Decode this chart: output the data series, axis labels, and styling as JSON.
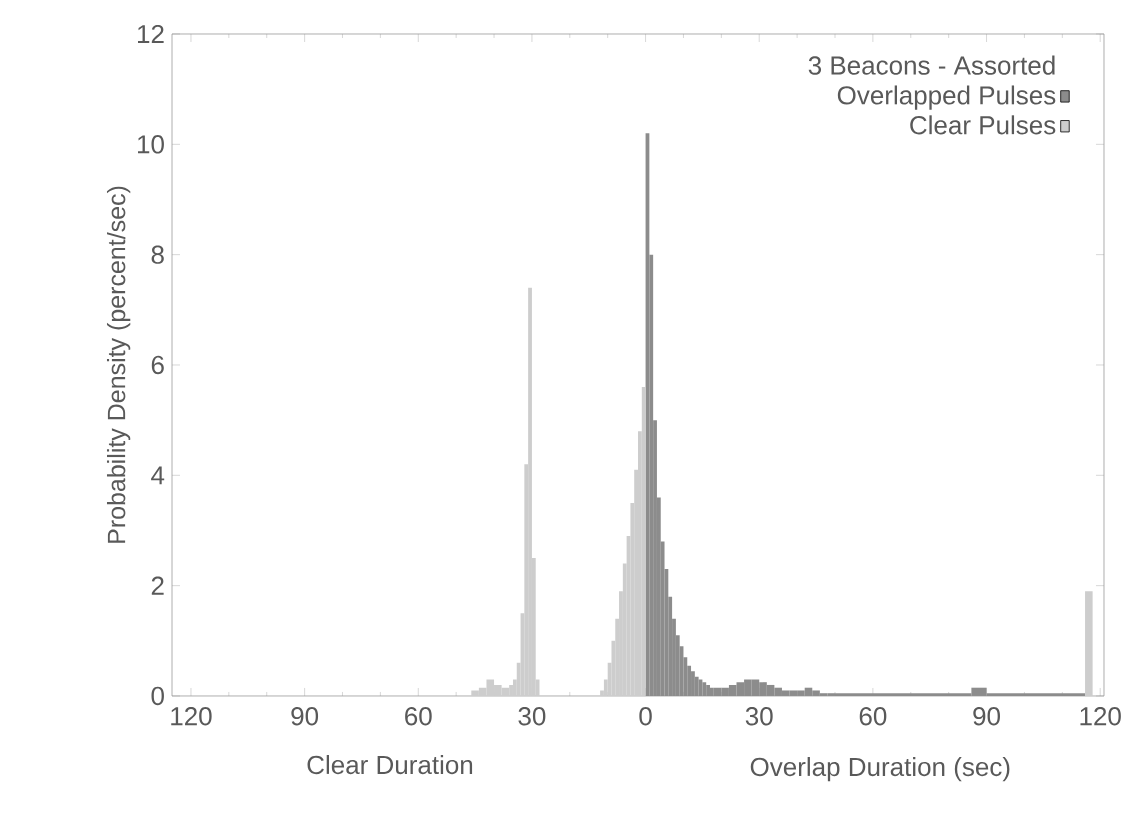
{
  "chart_data": {
    "type": "histogram",
    "legend_title": "3 Beacons - Assorted",
    "ylabel": "Probability Density (percent/sec)",
    "xlabel": "Overlap Duration (sec)",
    "annotations": [
      "Clear Duration"
    ],
    "xlim": [
      -125,
      121
    ],
    "ylim": [
      0,
      12
    ],
    "xticks": [
      {
        "value": -120,
        "label": "120"
      },
      {
        "value": -90,
        "label": "90"
      },
      {
        "value": -60,
        "label": "60"
      },
      {
        "value": -30,
        "label": "30"
      },
      0,
      30,
      60,
      90,
      120
    ],
    "yticks": [
      0,
      2,
      4,
      6,
      8,
      10,
      12
    ],
    "legend": "top right",
    "grid": false,
    "bins": [
      -46,
      -44,
      -42,
      -40,
      -38,
      -36,
      -35,
      -34,
      -33,
      -32,
      -31,
      -30,
      -29,
      -28,
      -12,
      -11,
      -10,
      -9,
      -8,
      -7,
      -6,
      -5,
      -4,
      -3,
      -2,
      -1,
      0,
      1,
      2,
      3,
      4,
      5,
      6,
      7,
      8,
      9,
      10,
      11,
      12,
      13,
      14,
      15,
      16,
      17,
      18,
      20,
      22,
      24,
      26,
      28,
      30,
      32,
      34,
      36,
      38,
      40,
      42,
      44,
      46,
      48,
      50,
      86,
      90,
      116,
      118
    ],
    "series": [
      {
        "name": "Overlapped Pulses",
        "color": "#8c8c8c",
        "values": [
          null,
          null,
          null,
          null,
          null,
          null,
          null,
          null,
          null,
          null,
          null,
          null,
          null,
          null,
          null,
          null,
          null,
          null,
          null,
          null,
          null,
          null,
          null,
          null,
          null,
          null,
          10.2,
          8.0,
          5.0,
          3.6,
          2.8,
          2.3,
          1.8,
          1.4,
          1.1,
          0.9,
          0.7,
          0.55,
          0.45,
          0.35,
          0.3,
          0.25,
          0.2,
          0.15,
          0.15,
          0.15,
          0.2,
          0.25,
          0.3,
          0.3,
          0.25,
          0.2,
          0.15,
          0.1,
          0.1,
          0.1,
          0.15,
          0.1,
          0.05,
          0.05,
          0.05,
          0.15,
          0.05,
          null
        ]
      },
      {
        "name": "Clear Pulses",
        "color": "#cdcdcd",
        "values": [
          0.1,
          0.15,
          0.3,
          0.2,
          0.15,
          0.2,
          0.3,
          0.6,
          1.5,
          4.2,
          7.4,
          2.5,
          0.3,
          null,
          0.1,
          0.3,
          0.6,
          1.0,
          1.4,
          1.9,
          2.4,
          2.9,
          3.5,
          4.1,
          4.8,
          5.6,
          null,
          null,
          null,
          null,
          null,
          null,
          null,
          null,
          null,
          null,
          null,
          null,
          null,
          null,
          null,
          null,
          null,
          null,
          null,
          null,
          null,
          null,
          null,
          null,
          null,
          null,
          null,
          null,
          null,
          null,
          null,
          null,
          null,
          null,
          null,
          null,
          null,
          1.9
        ]
      }
    ]
  }
}
